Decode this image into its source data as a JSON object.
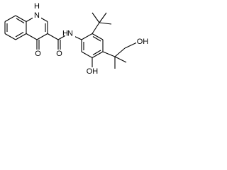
{
  "atoms": {
    "quinolone_h": "H",
    "quinolone_n": "N",
    "ketone_o": "O",
    "amide_o": "O",
    "amide_n": "N",
    "amide_h": "H",
    "phenol_oh": "OH",
    "alcohol_oh": "OH"
  }
}
